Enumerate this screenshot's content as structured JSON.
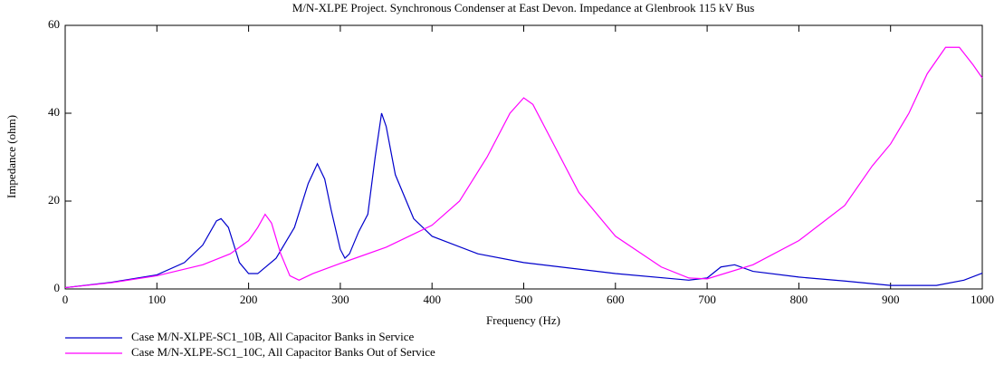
{
  "chart_data": {
    "type": "line",
    "title": "M/N-XLPE Project. Synchronous Condenser at East Devon. Impedance at Glenbrook 115 kV Bus",
    "x_label": "Frequency (Hz)",
    "y_label": "Impedance (ohm)",
    "xlim": [
      0,
      1000
    ],
    "xticks": [
      0,
      100,
      200,
      300,
      400,
      500,
      600,
      700,
      800,
      900,
      1000
    ],
    "ylim": [
      0,
      60
    ],
    "yticks": [
      0,
      20,
      40,
      60
    ],
    "grid": false,
    "series": [
      {
        "name": "Case M/N-XLPE-SC1_10B, All Capacitor Banks in Service",
        "color": "#0000cc",
        "x": [
          0,
          50,
          100,
          130,
          150,
          165,
          170,
          178,
          190,
          200,
          210,
          230,
          250,
          265,
          275,
          283,
          290,
          300,
          305,
          310,
          320,
          330,
          338,
          345,
          350,
          360,
          380,
          400,
          450,
          500,
          600,
          680,
          700,
          715,
          730,
          750,
          800,
          850,
          900,
          950,
          980,
          1000
        ],
        "values": [
          0.3,
          1.5,
          3.2,
          6,
          10,
          15.5,
          16,
          14,
          6,
          3.5,
          3.5,
          7,
          14,
          24,
          28.5,
          25,
          18,
          9,
          7,
          8,
          13,
          17,
          30,
          40,
          37,
          26,
          16,
          12,
          8,
          6,
          3.5,
          2,
          2.5,
          5,
          5.5,
          4,
          2.7,
          1.8,
          0.8,
          0.8,
          2,
          3.6
        ]
      },
      {
        "name": "Case M/N-XLPE-SC1_10C, All Capacitor Banks Out of Service",
        "color": "#ff00ff",
        "x": [
          0,
          50,
          100,
          150,
          180,
          200,
          210,
          218,
          225,
          235,
          245,
          255,
          270,
          300,
          350,
          400,
          430,
          460,
          485,
          500,
          510,
          530,
          560,
          600,
          650,
          680,
          700,
          750,
          800,
          850,
          880,
          900,
          920,
          940,
          960,
          975,
          990,
          1000
        ],
        "values": [
          0.3,
          1.4,
          3,
          5.5,
          8,
          11,
          14,
          17,
          15,
          8,
          3,
          2,
          3.5,
          5.8,
          9.5,
          14.5,
          20,
          30,
          40,
          43.5,
          42,
          34,
          22,
          12,
          5,
          2.5,
          2.3,
          5.5,
          11,
          19,
          28,
          33,
          40,
          49,
          55,
          55,
          51,
          48
        ]
      }
    ]
  }
}
